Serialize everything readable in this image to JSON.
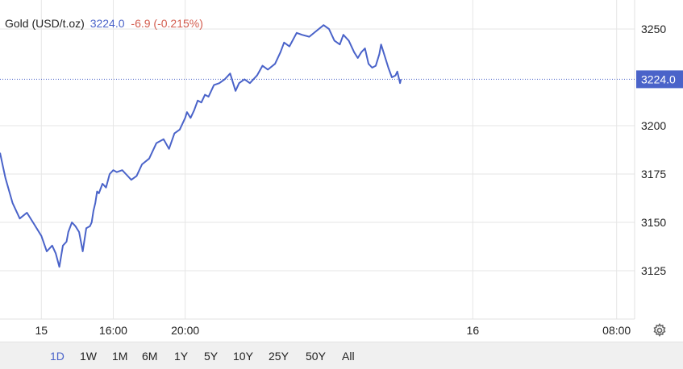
{
  "header": {
    "name": "Gold (USD/t.oz)",
    "price": "3224.0",
    "change": "-6.9 (-0.215%)"
  },
  "range_tabs": [
    "1D",
    "1W",
    "1M",
    "6M",
    "1Y",
    "5Y",
    "10Y",
    "25Y",
    "50Y",
    "All"
  ],
  "active_range": "1D",
  "colors": {
    "line": "#4a63c9",
    "price_label_bg": "#4a63c9",
    "change_negative": "#d35d4f",
    "grid": "#e6e6e6",
    "range_bar_bg": "#f0f0f0"
  },
  "icons": {
    "settings": "gear-icon"
  },
  "chart_data": {
    "type": "line",
    "title": "Gold (USD/t.oz)",
    "xlabel": "",
    "ylabel": "",
    "x_unit": "hours since 11:00 on the 14th",
    "x_ticks": [
      {
        "x": 13,
        "label": "15"
      },
      {
        "x": 17,
        "label": "16:00"
      },
      {
        "x": 21,
        "label": "20:00"
      },
      {
        "x": 37,
        "label": "16"
      },
      {
        "x": 45,
        "label": "08:00"
      }
    ],
    "y_ticks": [
      3125,
      3150,
      3175,
      3200,
      3250
    ],
    "ylim": [
      3100,
      3265
    ],
    "xlim": [
      10.7,
      46
    ],
    "grid": true,
    "last_price": 3224.0,
    "last_price_label": "3224.0",
    "series": [
      {
        "name": "Gold (USD/t.oz)",
        "x": [
          10.7,
          11,
          11.4,
          11.8,
          12.2,
          12.6,
          13.0,
          13.3,
          13.6,
          13.8,
          14.0,
          14.2,
          14.4,
          14.5,
          14.7,
          14.9,
          15.1,
          15.3,
          15.5,
          15.7,
          15.8,
          15.9,
          16.0,
          16.1,
          16.2,
          16.4,
          16.6,
          16.8,
          17.0,
          17.2,
          17.5,
          17.7,
          18.0,
          18.3,
          18.6,
          19.0,
          19.4,
          19.8,
          20.1,
          20.4,
          20.7,
          21.0,
          21.1,
          21.3,
          21.5,
          21.7,
          21.9,
          22.1,
          22.3,
          22.6,
          22.9,
          23.2,
          23.5,
          23.8,
          24.0,
          24.3,
          24.6,
          25.0,
          25.3,
          25.6,
          26.0,
          26.3,
          26.5,
          26.8,
          27.2,
          27.5,
          27.9,
          28.3,
          28.7,
          29.0,
          29.3,
          29.6,
          29.8,
          30.1,
          30.4,
          30.6,
          30.8,
          31.0,
          31.2,
          31.4,
          31.6,
          31.8,
          31.9,
          32.1,
          32.3,
          32.5,
          32.7,
          32.8,
          32.95,
          33.0
        ],
        "values": [
          3186,
          3173,
          3160,
          3152,
          3155,
          3149,
          3143,
          3135,
          3138,
          3134,
          3127,
          3138,
          3140,
          3145,
          3150,
          3148,
          3145,
          3135,
          3147,
          3148,
          3150,
          3156,
          3160,
          3166,
          3165,
          3170,
          3168,
          3175,
          3177,
          3176,
          3177,
          3175,
          3172,
          3174,
          3180,
          3183,
          3191,
          3193,
          3188,
          3196,
          3198,
          3204,
          3207,
          3204,
          3208,
          3213,
          3212,
          3216,
          3215,
          3221,
          3222,
          3224,
          3227,
          3218,
          3222,
          3224,
          3222,
          3226,
          3231,
          3229,
          3232,
          3238,
          3243,
          3241,
          3248,
          3247,
          3246,
          3249,
          3252,
          3250,
          3244,
          3242,
          3247,
          3244,
          3238,
          3235,
          3238,
          3240,
          3232,
          3230,
          3231,
          3237,
          3242,
          3236,
          3230,
          3225,
          3226,
          3228,
          3222,
          3224.0
        ]
      }
    ]
  }
}
